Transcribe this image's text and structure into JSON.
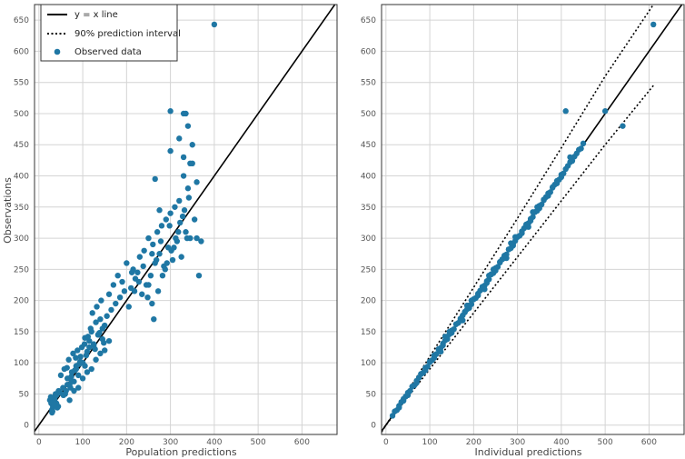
{
  "chart_data": [
    {
      "type": "scatter",
      "xlabel": "Population predictions",
      "ylabel": "Observations",
      "xlim": [
        -10,
        680
      ],
      "ylim": [
        -15,
        675
      ],
      "xticks": [
        0,
        100,
        200,
        300,
        400,
        500,
        600
      ],
      "yticks": [
        0,
        50,
        100,
        150,
        200,
        250,
        300,
        350,
        400,
        450,
        500,
        550,
        600,
        650
      ],
      "grid": true,
      "legend": {
        "position": "top-left",
        "entries": [
          {
            "label": "y = x line",
            "style": "solid-line"
          },
          {
            "label": "90% prediction interval",
            "style": "dotted-line"
          },
          {
            "label": "Observed data",
            "style": "marker"
          }
        ]
      },
      "series": [
        {
          "kind": "reference-line",
          "x": [
            -10,
            680
          ],
          "y": [
            -10,
            680
          ]
        },
        {
          "kind": "points",
          "color": "#1f77a4",
          "x": [
            25,
            28,
            30,
            32,
            35,
            38,
            40,
            42,
            45,
            30,
            33,
            36,
            40,
            44,
            48,
            27,
            31,
            35,
            55,
            60,
            65,
            70,
            75,
            80,
            85,
            90,
            95,
            100,
            58,
            62,
            68,
            72,
            78,
            82,
            88,
            92,
            98,
            104,
            50,
            56,
            64,
            74,
            84,
            94,
            105,
            110,
            115,
            120,
            125,
            130,
            135,
            140,
            145,
            150,
            108,
            112,
            118,
            122,
            128,
            132,
            138,
            142,
            148,
            155,
            160,
            165,
            170,
            175,
            180,
            185,
            190,
            195,
            200,
            210,
            215,
            220,
            225,
            230,
            235,
            240,
            245,
            250,
            255,
            260,
            265,
            270,
            275,
            280,
            285,
            290,
            295,
            300,
            305,
            310,
            315,
            320,
            325,
            330,
            335,
            340,
            345,
            350,
            355,
            360,
            365,
            370,
            205,
            212,
            218,
            228,
            238,
            248,
            258,
            268,
            278,
            288,
            298,
            308,
            318,
            328,
            338,
            258,
            262,
            272,
            282,
            292,
            302,
            312,
            322,
            332,
            342,
            300,
            320,
            335,
            345,
            350,
            360,
            330,
            340,
            250,
            265,
            275,
            70,
            80,
            90,
            100,
            110,
            120,
            130,
            140,
            150,
            160,
            115,
            125,
            135,
            145,
            95,
            105,
            85,
            75,
            65,
            300,
            330,
            400
          ],
          "y": [
            40,
            35,
            25,
            30,
            45,
            50,
            35,
            28,
            55,
            20,
            38,
            42,
            48,
            30,
            52,
            45,
            22,
            33,
            60,
            50,
            75,
            65,
            85,
            70,
            95,
            80,
            110,
            100,
            90,
            55,
            105,
            60,
            115,
            88,
            120,
            98,
            125,
            130,
            80,
            48,
            92,
            78,
            108,
            102,
            140,
            118,
            135,
            150,
            128,
            165,
            145,
            170,
            138,
            160,
            112,
            142,
            155,
            180,
            122,
            190,
            148,
            200,
            132,
            175,
            210,
            185,
            225,
            195,
            240,
            205,
            230,
            215,
            260,
            220,
            250,
            235,
            245,
            270,
            210,
            280,
            225,
            300,
            240,
            290,
            260,
            310,
            275,
            320,
            255,
            330,
            285,
            340,
            265,
            350,
            295,
            360,
            270,
            400,
            310,
            380,
            300,
            420,
            330,
            390,
            240,
            295,
            190,
            245,
            215,
            230,
            255,
            205,
            275,
            265,
            295,
            250,
            320,
            285,
            310,
            335,
            300,
            195,
            170,
            215,
            240,
            260,
            280,
            300,
            325,
            345,
            365,
            440,
            460,
            500,
            420,
            450,
            300,
            500,
            480,
            225,
            395,
            345,
            40,
            55,
            60,
            75,
            85,
            90,
            105,
            115,
            120,
            135,
            125,
            130,
            145,
            155,
            100,
            95,
            90,
            70,
            65,
            504,
            430,
            643
          ]
        }
      ]
    },
    {
      "type": "scatter",
      "xlabel": "Individual predictions",
      "ylabel": "",
      "xlim": [
        -10,
        680
      ],
      "ylim": [
        -15,
        675
      ],
      "xticks": [
        0,
        100,
        200,
        300,
        400,
        500,
        600
      ],
      "yticks": [
        0,
        50,
        100,
        150,
        200,
        250,
        300,
        350,
        400,
        450,
        500,
        550,
        600,
        650
      ],
      "grid": true,
      "series": [
        {
          "kind": "reference-line",
          "x": [
            -10,
            680
          ],
          "y": [
            -10,
            680
          ]
        },
        {
          "kind": "prediction-interval-upper",
          "x": [
            -10,
            100,
            200,
            300,
            400,
            500,
            610
          ],
          "y": [
            -11,
            110,
            221,
            332,
            445,
            560,
            675
          ]
        },
        {
          "kind": "prediction-interval-lower",
          "x": [
            -10,
            100,
            200,
            300,
            400,
            500,
            610
          ],
          "y": [
            -9,
            90,
            180,
            270,
            360,
            450,
            545
          ]
        },
        {
          "kind": "points",
          "color": "#1f77a4",
          "x": [
            15,
            20,
            25,
            30,
            35,
            40,
            45,
            50,
            55,
            60,
            65,
            70,
            75,
            80,
            85,
            90,
            95,
            100,
            105,
            110,
            115,
            120,
            125,
            130,
            135,
            140,
            145,
            150,
            155,
            160,
            165,
            170,
            175,
            180,
            185,
            190,
            195,
            200,
            205,
            210,
            215,
            220,
            225,
            230,
            235,
            240,
            245,
            250,
            255,
            260,
            265,
            270,
            275,
            280,
            285,
            290,
            295,
            300,
            305,
            310,
            315,
            320,
            325,
            330,
            335,
            340,
            345,
            350,
            355,
            360,
            365,
            370,
            375,
            380,
            385,
            390,
            395,
            400,
            405,
            410,
            415,
            420,
            425,
            430,
            435,
            440,
            445,
            450,
            30,
            40,
            50,
            60,
            70,
            80,
            90,
            100,
            110,
            120,
            130,
            140,
            150,
            160,
            170,
            180,
            190,
            200,
            210,
            220,
            230,
            240,
            250,
            260,
            270,
            280,
            290,
            300,
            310,
            320,
            330,
            340,
            350,
            360,
            370,
            380,
            390,
            400,
            125,
            135,
            145,
            175,
            185,
            195,
            225,
            235,
            245,
            275,
            285,
            295,
            325,
            335,
            345,
            410,
            420,
            500,
            540,
            610
          ],
          "y": [
            15,
            22,
            24,
            31,
            37,
            39,
            46,
            52,
            55,
            62,
            64,
            71,
            76,
            82,
            84,
            92,
            94,
            101,
            104,
            112,
            114,
            122,
            124,
            131,
            136,
            138,
            146,
            152,
            154,
            162,
            164,
            171,
            176,
            181,
            186,
            192,
            194,
            202,
            204,
            211,
            216,
            222,
            224,
            231,
            234,
            242,
            244,
            252,
            254,
            261,
            266,
            272,
            274,
            282,
            284,
            291,
            296,
            302,
            304,
            311,
            316,
            322,
            324,
            331,
            334,
            342,
            344,
            352,
            354,
            361,
            366,
            372,
            374,
            381,
            386,
            392,
            394,
            402,
            404,
            411,
            416,
            422,
            424,
            431,
            436,
            442,
            444,
            452,
            28,
            42,
            48,
            62,
            68,
            82,
            88,
            102,
            108,
            122,
            128,
            142,
            148,
            162,
            168,
            182,
            188,
            202,
            208,
            222,
            228,
            242,
            248,
            262,
            268,
            282,
            288,
            302,
            308,
            322,
            328,
            342,
            348,
            362,
            368,
            382,
            388,
            398,
            118,
            142,
            150,
            168,
            192,
            200,
            218,
            240,
            250,
            268,
            292,
            302,
            318,
            342,
            350,
            504,
            430,
            504,
            480,
            643
          ]
        }
      ]
    }
  ]
}
